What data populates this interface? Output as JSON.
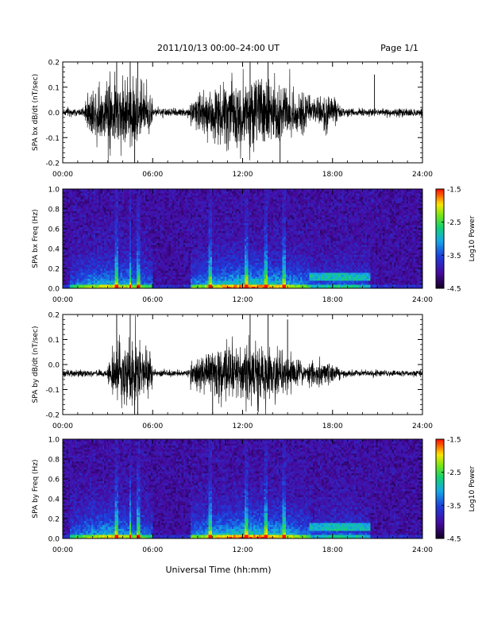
{
  "header": {
    "title": "2011/10/13  00:00–24:00 UT",
    "page": "Page 1/1"
  },
  "footer": {
    "xlabel": "Universal Time (hh:mm)"
  },
  "chart_data": [
    {
      "type": "line",
      "ylabel": "SPA bx dB/dt (nT/sec)",
      "xlim": [
        0,
        24
      ],
      "ylim": [
        -0.2,
        0.2
      ],
      "x_ticks": [
        "00:00",
        "06:00",
        "12:00",
        "18:00",
        "24:00"
      ],
      "y_ticks": [
        "0.2",
        "0.1",
        "0.0",
        "-0.1",
        "-0.2"
      ],
      "baseline": 0.0,
      "noise_floor": 0.015,
      "activity_envelope": [
        {
          "start": 1.5,
          "end": 6.0,
          "amplitude": 0.12
        },
        {
          "start": 8.5,
          "end": 16.5,
          "amplitude": 0.12
        },
        {
          "start": 16.5,
          "end": 18.5,
          "amplitude": 0.05
        }
      ],
      "spikes": [
        {
          "t": 3.6,
          "value": 0.2
        },
        {
          "t": 4.5,
          "value": 0.2
        },
        {
          "t": 5.0,
          "value": 0.2
        },
        {
          "t": 4.8,
          "value": -0.2
        },
        {
          "t": 12.5,
          "value": 0.2
        },
        {
          "t": 13.7,
          "value": 0.2
        },
        {
          "t": 14.5,
          "value": -0.2
        },
        {
          "t": 20.8,
          "value": 0.15
        }
      ]
    },
    {
      "type": "heatmap",
      "ylabel": "SPA bx Freq (Hz)",
      "xlim": [
        0,
        24
      ],
      "ylim": [
        0.0,
        1.0
      ],
      "x_ticks": [
        "00:00",
        "06:00",
        "12:00",
        "18:00",
        "24:00"
      ],
      "y_ticks": [
        "1.0",
        "0.8",
        "0.6",
        "0.4",
        "0.2",
        "0.0"
      ],
      "colorbar": {
        "label": "Log10 Power",
        "range": [
          -4.5,
          -1.5
        ],
        "ticks": [
          "-1.5",
          "-2.5",
          "-3.5",
          "-4.5"
        ]
      },
      "activity_bands": [
        {
          "start": 0.5,
          "end": 6.0,
          "level": 0.5
        },
        {
          "start": 8.5,
          "end": 16.5,
          "level": 0.6
        },
        {
          "start": 16.5,
          "end": 20.5,
          "level": 0.3
        }
      ],
      "vertical_streaks": [
        3.6,
        4.5,
        5.1,
        9.8,
        12.2,
        13.6,
        14.8
      ],
      "horizontal_band": {
        "start": 16.5,
        "end": 20.5,
        "freq": 0.12
      }
    },
    {
      "type": "line",
      "ylabel": "SPA by dB/dt (nT/sec)",
      "xlim": [
        0,
        24
      ],
      "ylim": [
        -0.2,
        0.2
      ],
      "x_ticks": [
        "00:00",
        "06:00",
        "12:00",
        "18:00",
        "24:00"
      ],
      "y_ticks": [
        "0.2",
        "0.1",
        "0.0",
        "-0.1",
        "-0.2"
      ],
      "baseline": -0.035,
      "noise_floor": 0.012,
      "activity_envelope": [
        {
          "start": 3.0,
          "end": 6.0,
          "amplitude": 0.12
        },
        {
          "start": 8.5,
          "end": 16.0,
          "amplitude": 0.1
        },
        {
          "start": 16.0,
          "end": 18.5,
          "amplitude": 0.04
        }
      ],
      "spikes": [
        {
          "t": 3.6,
          "value": 0.2
        },
        {
          "t": 4.5,
          "value": 0.2
        },
        {
          "t": 5.0,
          "value": -0.2
        },
        {
          "t": 4.8,
          "value": -0.2
        },
        {
          "t": 12.5,
          "value": 0.2
        },
        {
          "t": 13.7,
          "value": 0.2
        },
        {
          "t": 15.0,
          "value": 0.18
        },
        {
          "t": 10.0,
          "value": -0.2
        }
      ]
    },
    {
      "type": "heatmap",
      "ylabel": "SPA by Freq (Hz)",
      "xlim": [
        0,
        24
      ],
      "ylim": [
        0.0,
        1.0
      ],
      "x_ticks": [
        "00:00",
        "06:00",
        "12:00",
        "18:00",
        "24:00"
      ],
      "y_ticks": [
        "1.0",
        "0.8",
        "0.6",
        "0.4",
        "0.2",
        "0.0"
      ],
      "colorbar": {
        "label": "Log10 Power",
        "range": [
          -4.5,
          -1.5
        ],
        "ticks": [
          "-1.5",
          "-2.5",
          "-3.5",
          "-4.5"
        ]
      },
      "activity_bands": [
        {
          "start": 0.5,
          "end": 6.0,
          "level": 0.5
        },
        {
          "start": 8.5,
          "end": 16.5,
          "level": 0.6
        },
        {
          "start": 16.5,
          "end": 20.5,
          "level": 0.3
        }
      ],
      "vertical_streaks": [
        3.6,
        4.5,
        5.1,
        9.8,
        12.2,
        13.6,
        14.8
      ],
      "horizontal_band": {
        "start": 16.5,
        "end": 20.5,
        "freq": 0.12
      }
    }
  ]
}
